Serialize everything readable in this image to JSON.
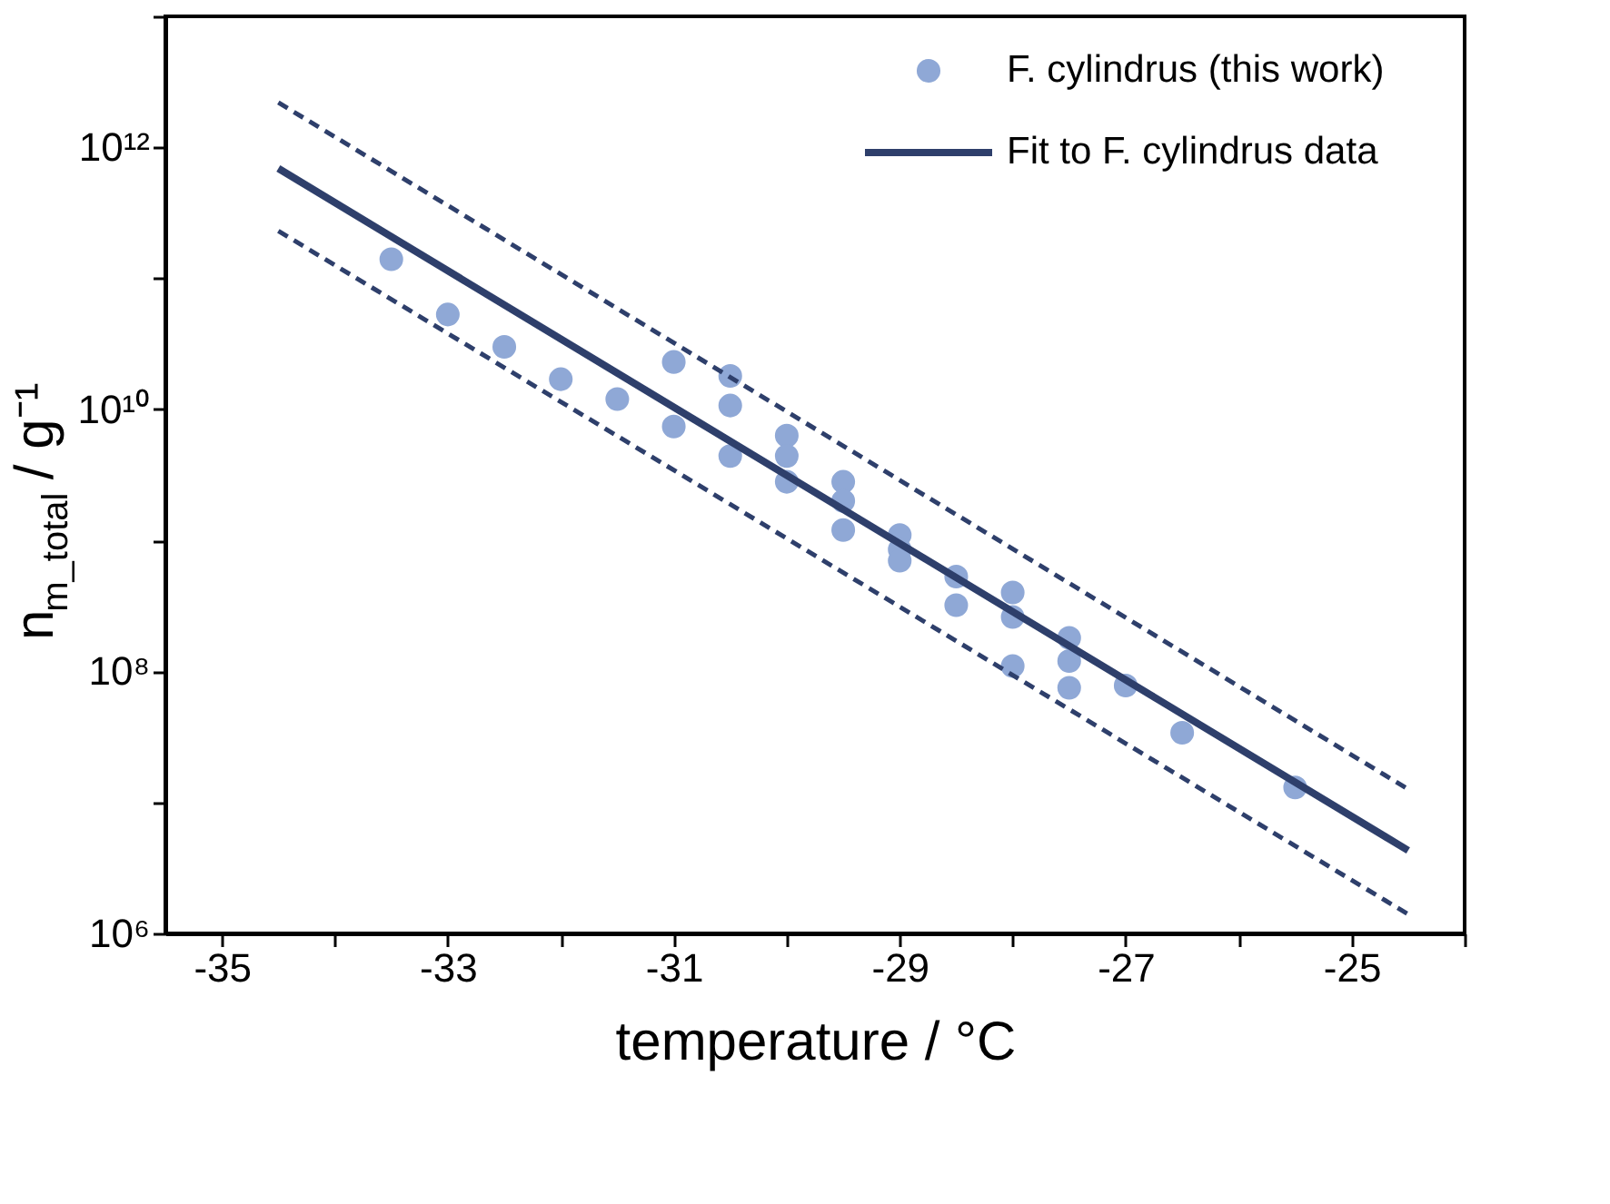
{
  "chart_data": {
    "type": "scatter",
    "xlabel": "temperature / °C",
    "ylabel": "n$_{m_total}$ / g⁻¹",
    "xlim": [
      -35.5,
      -24
    ],
    "ylim": [
      1000000.0,
      10000000000000.0
    ],
    "log": "y",
    "grid": false,
    "legend": "top right",
    "xticks": [
      -35,
      {
        "value": -34,
        "label": null
      },
      -33,
      {
        "value": -32,
        "label": null
      },
      -31,
      {
        "value": -30,
        "label": null
      },
      -29,
      {
        "value": -28,
        "label": null
      },
      -27,
      {
        "value": -26,
        "label": null
      },
      -25,
      {
        "value": -24,
        "label": null
      }
    ],
    "yticks": [
      {
        "value": 1000000.0,
        "label": "10⁶"
      },
      {
        "value": 10000000.0,
        "label": null
      },
      {
        "value": 100000000.0,
        "label": "10⁸"
      },
      {
        "value": 1000000000.0,
        "label": null
      },
      {
        "value": 10000000000.0,
        "label": "10¹⁰"
      },
      {
        "value": 100000000000.0,
        "label": null
      },
      {
        "value": 1000000000000.0,
        "label": "10¹²"
      },
      {
        "value": 10000000000000.0,
        "label": null
      }
    ],
    "series": [
      {
        "name": "F. cylindrus (this work)",
        "type": "scatter",
        "marker": "circle",
        "color": "#8fa8d6",
        "x": [
          -33.5,
          -33,
          -32.5,
          -32,
          -31.5,
          -31,
          -31,
          -30.5,
          -30.5,
          -30.5,
          -30,
          -30,
          -30,
          -29.5,
          -29.5,
          -29.5,
          -29,
          -29,
          -29,
          -28.5,
          -28.5,
          -28,
          -28,
          -28,
          -27.5,
          -27.5,
          -27.5,
          -27,
          -26.5,
          -25.5
        ],
        "values": [
          140000000000.0,
          53000000000.0,
          30000000000.0,
          17000000000.0,
          12000000000.0,
          23000000000.0,
          7400000000.0,
          18000000000.0,
          10700000000.0,
          4400000000.0,
          6300000000.0,
          4400000000.0,
          2800000000.0,
          2800000000.0,
          2000000000.0,
          1200000000.0,
          1100000000.0,
          850000000.0,
          700000000.0,
          530000000.0,
          320000000.0,
          400000000.0,
          260000000.0,
          110000000.0,
          180000000.0,
          120000000.0,
          75000000.0,
          78000000.0,
          34000000.0,
          13000000.0
        ]
      },
      {
        "name": "Fit to F. cylindrus data",
        "type": "line",
        "line_style": "solid",
        "color": "#2e3f6b",
        "x": [
          -34.5,
          -24.5
        ],
        "values": [
          690000000000.0,
          4300000.0
        ]
      },
      {
        "type": "line",
        "line_style": "dashed",
        "color": "#2e3f6b",
        "x": [
          -34.5,
          -24.5
        ],
        "values": [
          2200000000000.0,
          12600000.0
        ]
      },
      {
        "type": "line",
        "line_style": "dashed",
        "color": "#2e3f6b",
        "x": [
          -34.5,
          -24.5
        ],
        "values": [
          230000000000.0,
          1400000.0
        ]
      }
    ]
  }
}
